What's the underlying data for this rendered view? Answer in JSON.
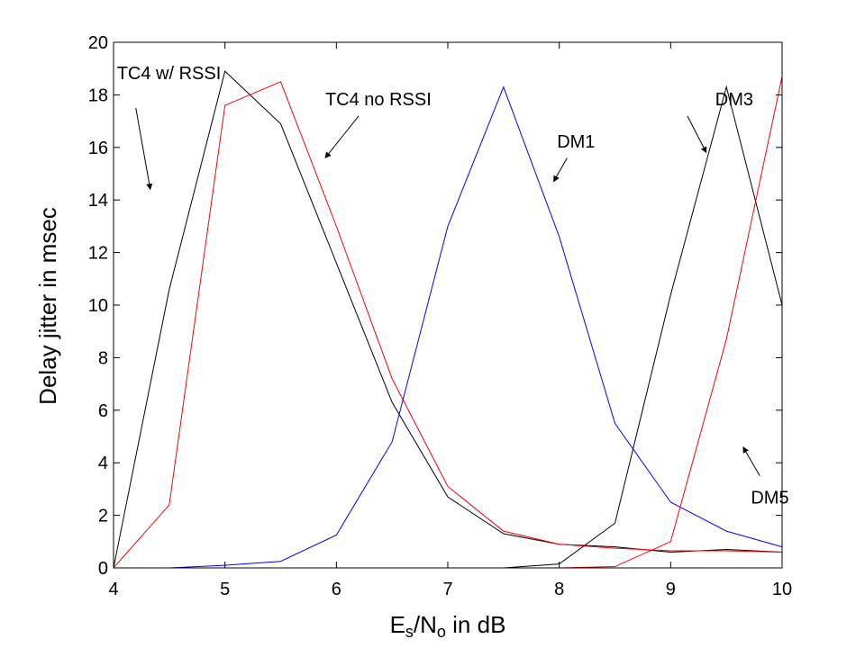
{
  "chart_data": {
    "type": "line",
    "title": "",
    "xlabel_parts": {
      "main1": "E",
      "sub1": "s",
      "mid": "/N",
      "sub2": "o",
      "tail": " in dB"
    },
    "ylabel": "Delay jitter in msec",
    "xlim": [
      4,
      10
    ],
    "ylim": [
      0,
      20
    ],
    "x_ticks": [
      4,
      5,
      6,
      7,
      8,
      9,
      10
    ],
    "y_ticks": [
      0,
      2,
      4,
      6,
      8,
      10,
      12,
      14,
      16,
      18,
      20
    ],
    "grid": false,
    "legend": "none",
    "x": [
      4,
      4.5,
      5,
      5.5,
      6,
      6.5,
      7,
      7.5,
      8,
      8.5,
      9,
      9.5,
      10
    ],
    "series": [
      {
        "id": "tc4-rssi",
        "color": "#000000",
        "values": [
          0,
          10.6,
          18.9,
          16.9,
          11.6,
          6.3,
          2.7,
          1.3,
          0.9,
          0.8,
          0.6,
          0.7,
          0.6
        ]
      },
      {
        "id": "tc4-no-rssi",
        "color": "#ff0000",
        "values": [
          0,
          2.4,
          17.6,
          18.5,
          13.0,
          7.2,
          3.1,
          1.4,
          0.9,
          0.75,
          0.65,
          0.65,
          0.6
        ]
      },
      {
        "id": "dm1",
        "color": "#0000ff",
        "values": [
          0,
          0,
          0.1,
          0.25,
          1.25,
          4.8,
          13.0,
          18.3,
          12.6,
          5.5,
          2.5,
          1.4,
          0.8
        ]
      },
      {
        "id": "dm3",
        "color": "#000000",
        "values": [
          0,
          0,
          0,
          0,
          0,
          0,
          0,
          0,
          0.15,
          1.7,
          10.4,
          18.3,
          10.0
        ]
      },
      {
        "id": "dm5",
        "color": "#ff0000",
        "values": [
          0,
          0,
          0,
          0,
          0,
          0,
          0,
          0,
          0,
          0.05,
          1.0,
          8.7,
          18.7
        ]
      }
    ],
    "annotations": [
      {
        "id": "tc4-rssi",
        "text": "TC4 w/ RSSI",
        "text_at": [
          4.03,
          18.6
        ],
        "arrow_from": [
          4.2,
          17.5
        ],
        "arrow_to": [
          4.33,
          14.4
        ]
      },
      {
        "id": "tc4-no-rssi",
        "text": "TC4 no RSSI",
        "text_at": [
          5.9,
          17.6
        ],
        "arrow_from": [
          6.2,
          17.2
        ],
        "arrow_to": [
          5.9,
          15.6
        ]
      },
      {
        "id": "dm1",
        "text": "DM1",
        "text_at": [
          7.98,
          16.0
        ],
        "arrow_from": [
          8.07,
          15.6
        ],
        "arrow_to": [
          7.95,
          14.7
        ]
      },
      {
        "id": "dm3",
        "text": "DM3",
        "text_at": [
          9.4,
          17.6
        ],
        "arrow_from": [
          9.15,
          17.2
        ],
        "arrow_to": [
          9.32,
          15.8
        ]
      },
      {
        "id": "dm5",
        "text": "DM5",
        "text_at": [
          9.72,
          2.45
        ],
        "arrow_from": [
          9.8,
          3.5
        ],
        "arrow_to": [
          9.65,
          4.6
        ]
      }
    ]
  }
}
